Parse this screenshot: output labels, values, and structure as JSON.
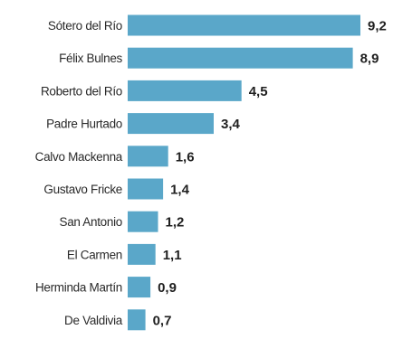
{
  "chart_data": {
    "type": "bar",
    "orientation": "horizontal",
    "categories": [
      "Sótero del Río",
      "Félix Bulnes",
      "Roberto del Río",
      "Padre Hurtado",
      "Calvo Mackenna",
      "Gustavo Fricke",
      "San Antonio",
      "El Carmen",
      "Herminda Martín",
      "De Valdivia"
    ],
    "values": [
      9.2,
      8.9,
      4.5,
      3.4,
      1.6,
      1.4,
      1.2,
      1.1,
      0.9,
      0.7
    ],
    "value_labels": [
      "9,2",
      "8,9",
      "4,5",
      "3,4",
      "1,6",
      "1,4",
      "1,2",
      "1,1",
      "0,9",
      "0,7"
    ],
    "xlim": [
      0,
      9.2
    ],
    "bar_color": "#5aa7c9",
    "grid": false,
    "legend": "none"
  }
}
